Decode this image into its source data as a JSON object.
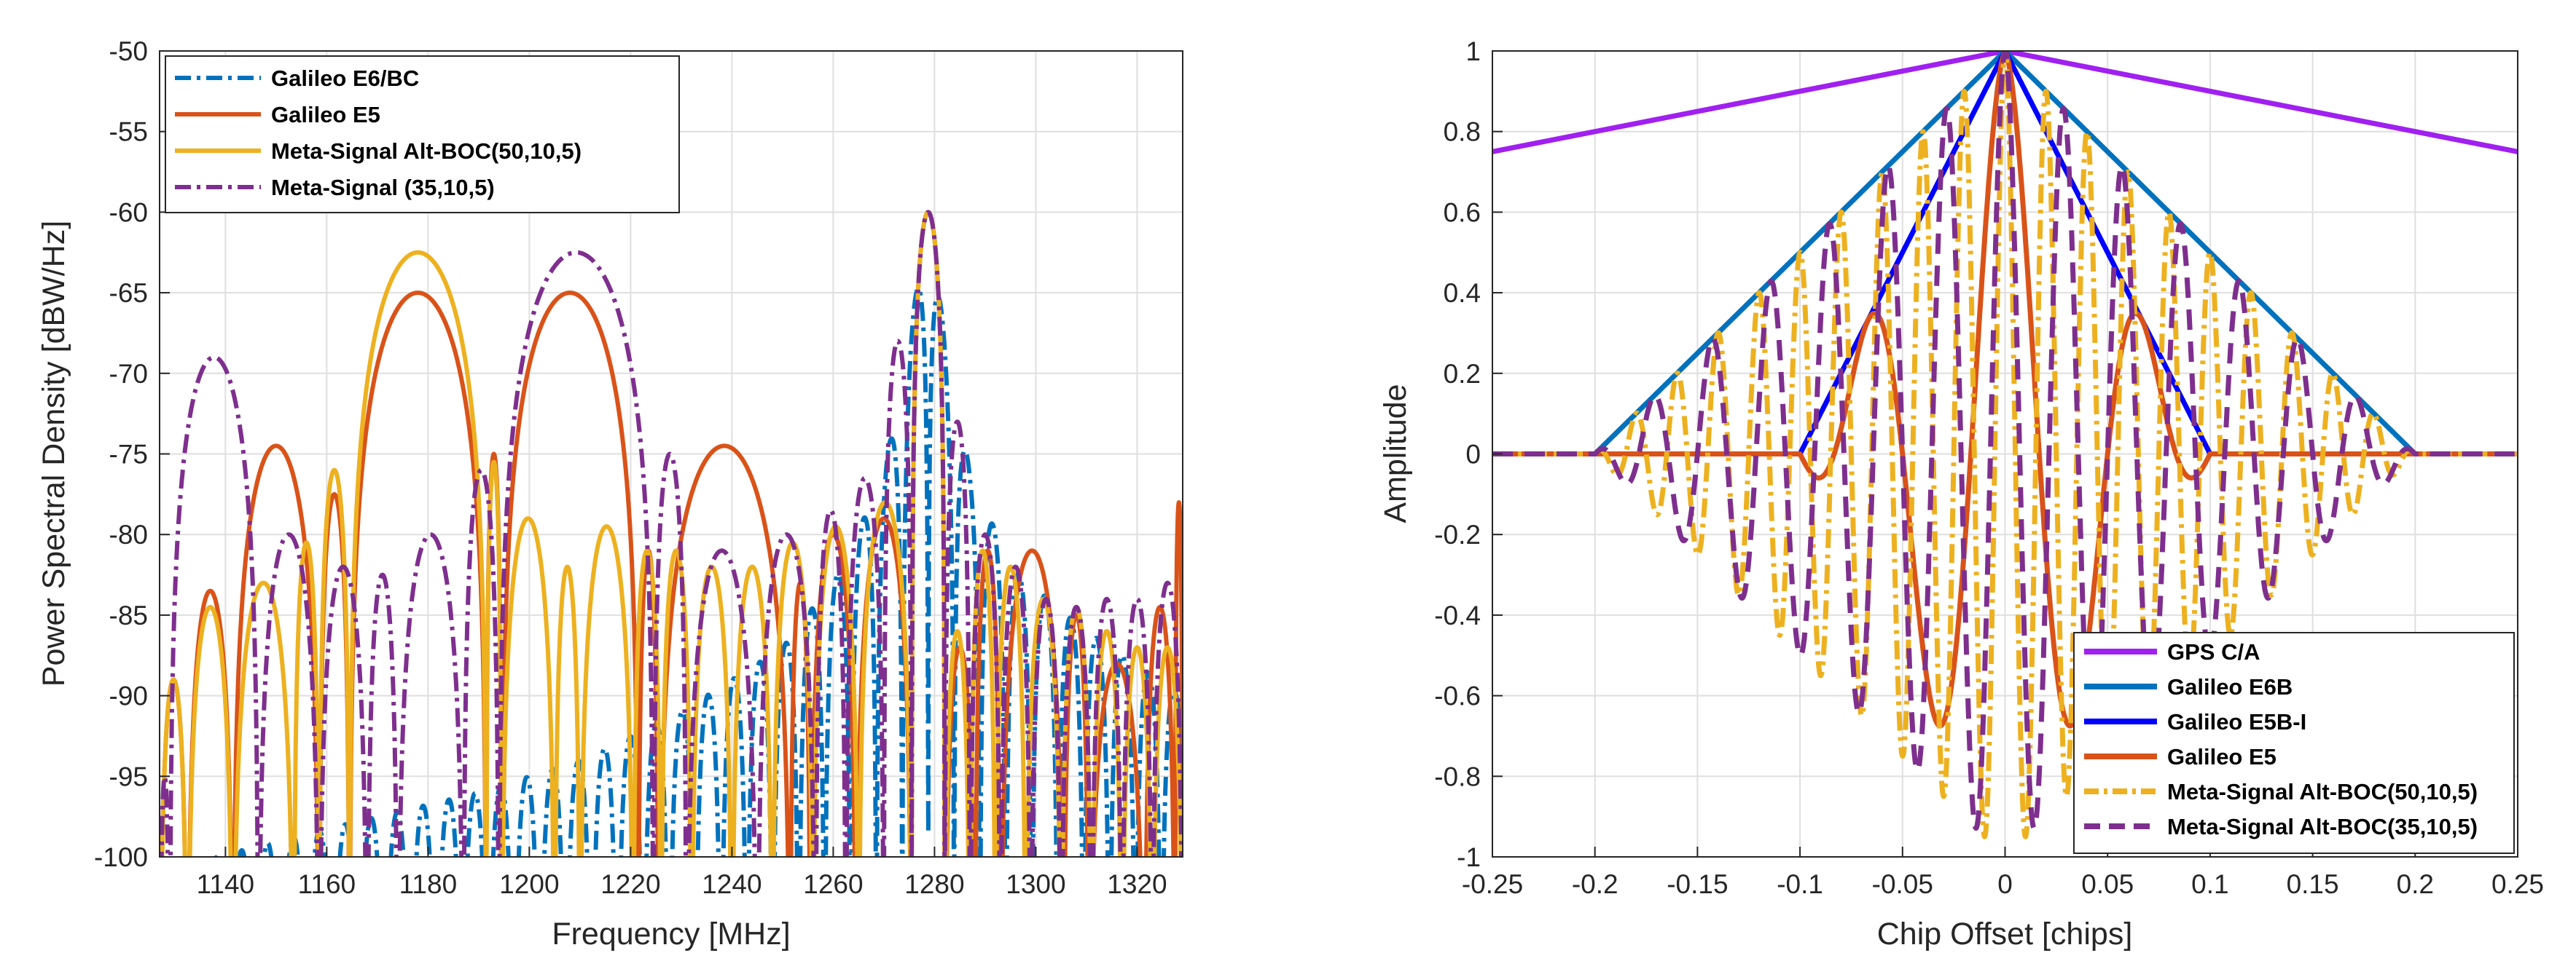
{
  "chart_data": [
    {
      "type": "line",
      "title": "",
      "xlabel": "Frequency  [MHz]",
      "ylabel": "Power Spectral Density [dBW/Hz]",
      "xlim": [
        1127,
        1329
      ],
      "ylim": [
        -100,
        -50
      ],
      "grid": true,
      "legend_position": "top-left",
      "x_ticks": [
        1140,
        1160,
        1180,
        1200,
        1220,
        1240,
        1260,
        1280,
        1300,
        1320
      ],
      "y_ticks": [
        -100,
        -95,
        -90,
        -85,
        -80,
        -75,
        -70,
        -65,
        -60,
        -55,
        -50
      ],
      "series": [
        {
          "name": "Galileo E6/BC",
          "color": "#0072BD",
          "dash": "dashdot",
          "envelope": [
            [
              1127,
              -101
            ],
            [
              1150,
              -99
            ],
            [
              1170,
              -97.5
            ],
            [
              1190,
              -96
            ],
            [
              1210,
              -94
            ],
            [
              1230,
              -91
            ],
            [
              1250,
              -87
            ],
            [
              1262,
              -82
            ],
            [
              1270,
              -76
            ],
            [
              1274,
              -70
            ],
            [
              1278.75,
              -60
            ],
            [
              1283,
              -70
            ],
            [
              1287,
              -76
            ],
            [
              1295,
              -82
            ],
            [
              1310,
              -86
            ],
            [
              1329,
              -90
            ]
          ],
          "lobe_width": 5.115,
          "center": 1278.75
        },
        {
          "name": "Galileo E5",
          "color": "#D95319",
          "dash": "solid",
          "lobes": [
            [
              1127,
              1132.5,
              -89
            ],
            [
              1132.5,
              1141.5,
              -83.5
            ],
            [
              1141.5,
              1158.5,
              -74.5
            ],
            [
              1158.5,
              1164.5,
              -77.5
            ],
            [
              1164.5,
              1191.5,
              -65
            ],
            [
              1191.5,
              1194.5,
              -75
            ],
            [
              1194.5,
              1221.5,
              -65
            ],
            [
              1221.5,
              1225.5,
              -81
            ],
            [
              1225.5,
              1251.5,
              -74.5
            ],
            [
              1251.5,
              1255.5,
              -83
            ],
            [
              1255.5,
              1264.5,
              -80
            ],
            [
              1264.5,
              1275.5,
              -79
            ],
            [
              1275.5,
              1282,
              -60
            ],
            [
              1282,
              1288,
              -87
            ],
            [
              1288,
              1293,
              -81
            ],
            [
              1293,
              1305.5,
              -81
            ],
            [
              1305.5,
              1310.5,
              -85
            ],
            [
              1310.5,
              1321.5,
              -88
            ],
            [
              1321.5,
              1327.5,
              -84.5
            ],
            [
              1327.5,
              1329,
              -78
            ]
          ]
        },
        {
          "name": "Meta-Signal Alt-BOC(50,10,5)",
          "color": "#EDB120",
          "dash": "solid",
          "lobes": [
            [
              1127,
              1132.5,
              -89
            ],
            [
              1132.5,
              1141.5,
              -84.5
            ],
            [
              1141.5,
              1153.5,
              -83
            ],
            [
              1153.5,
              1158.5,
              -80.5
            ],
            [
              1158.5,
              1164.5,
              -76
            ],
            [
              1164.5,
              1191.5,
              -62.5
            ],
            [
              1191.5,
              1194.5,
              -75.5
            ],
            [
              1194.5,
              1205,
              -79
            ],
            [
              1205,
              1210,
              -82
            ],
            [
              1210,
              1220.5,
              -79.5
            ],
            [
              1220.5,
              1226,
              -81
            ],
            [
              1226,
              1232,
              -81
            ],
            [
              1232,
              1240,
              -82
            ],
            [
              1240,
              1248,
              -82
            ],
            [
              1248,
              1256,
              -80.5
            ],
            [
              1256,
              1265,
              -79.5
            ],
            [
              1265,
              1275.5,
              -78
            ],
            [
              1275.5,
              1282,
              -60
            ],
            [
              1282,
              1287,
              -86
            ],
            [
              1287,
              1292,
              -81
            ],
            [
              1292,
              1298,
              -82
            ],
            [
              1298,
              1305,
              -84
            ],
            [
              1305,
              1311,
              -84.5
            ],
            [
              1311,
              1317,
              -86
            ],
            [
              1317,
              1323,
              -87
            ],
            [
              1323,
              1329,
              -87
            ]
          ]
        },
        {
          "name": "Meta-Signal (35,10,5)",
          "color": "#7E2F8E",
          "dash": "dashdot",
          "lobes": [
            [
              1127,
              1129,
              -95
            ],
            [
              1129,
              1146.5,
              -69
            ],
            [
              1146.5,
              1158.5,
              -80
            ],
            [
              1158.5,
              1168,
              -82
            ],
            [
              1168,
              1174,
              -82.5
            ],
            [
              1174,
              1187,
              -80
            ],
            [
              1187,
              1194,
              -76
            ],
            [
              1194,
              1224.5,
              -62.5
            ],
            [
              1224.5,
              1231,
              -75
            ],
            [
              1231,
              1245,
              -81
            ],
            [
              1245,
              1256.5,
              -80
            ],
            [
              1256.5,
              1262.5,
              -78.5
            ],
            [
              1262.5,
              1270,
              -76.5
            ],
            [
              1270,
              1275.5,
              -68
            ],
            [
              1275.5,
              1282,
              -60
            ],
            [
              1282,
              1287,
              -73
            ],
            [
              1287,
              1293,
              -80
            ],
            [
              1293,
              1299,
              -82
            ],
            [
              1299,
              1305,
              -84
            ],
            [
              1305,
              1311,
              -84.5
            ],
            [
              1311,
              1317,
              -84
            ],
            [
              1317,
              1323,
              -84
            ],
            [
              1323,
              1329,
              -83
            ]
          ]
        }
      ]
    },
    {
      "type": "line",
      "title": "",
      "xlabel": "Chip Offset [chips]",
      "ylabel": "Amplitude",
      "xlim": [
        -0.25,
        0.25
      ],
      "ylim": [
        -1,
        1
      ],
      "grid": true,
      "legend_position": "bottom-right",
      "x_ticks": [
        -0.25,
        -0.2,
        -0.15,
        -0.1,
        -0.05,
        0,
        0.05,
        0.1,
        0.15,
        0.2,
        0.25
      ],
      "y_ticks": [
        -1,
        -0.8,
        -0.6,
        -0.4,
        -0.2,
        0,
        0.2,
        0.4,
        0.6,
        0.8,
        1
      ],
      "series": [
        {
          "name": "GPS C/A",
          "color": "#A020F0",
          "dash": "solid",
          "shape": "triangle",
          "half_width": 1.0
        },
        {
          "name": "Galileo E6B",
          "color": "#0072BD",
          "dash": "solid",
          "shape": "triangle",
          "half_width": 0.2
        },
        {
          "name": "Galileo E5B-I",
          "color": "#0000FF",
          "dash": "solid",
          "shape": "triangle",
          "half_width": 0.1
        },
        {
          "name": "Galileo E5",
          "color": "#D95319",
          "dash": "solid",
          "shape": "altboc",
          "half_width": 0.1,
          "periods_per_half_width": 1.5
        },
        {
          "name": "Meta-Signal Alt-BOC(50,10,5)",
          "color": "#EDB120",
          "dash": "dashdot",
          "shape": "altboc",
          "half_width": 0.2,
          "periods_per_half_width": 10
        },
        {
          "name": "Meta-Signal Alt-BOC(35,10,5)",
          "color": "#7E2F8E",
          "dash": "dashed",
          "shape": "altboc",
          "half_width": 0.2,
          "periods_per_half_width": 7
        }
      ]
    }
  ]
}
